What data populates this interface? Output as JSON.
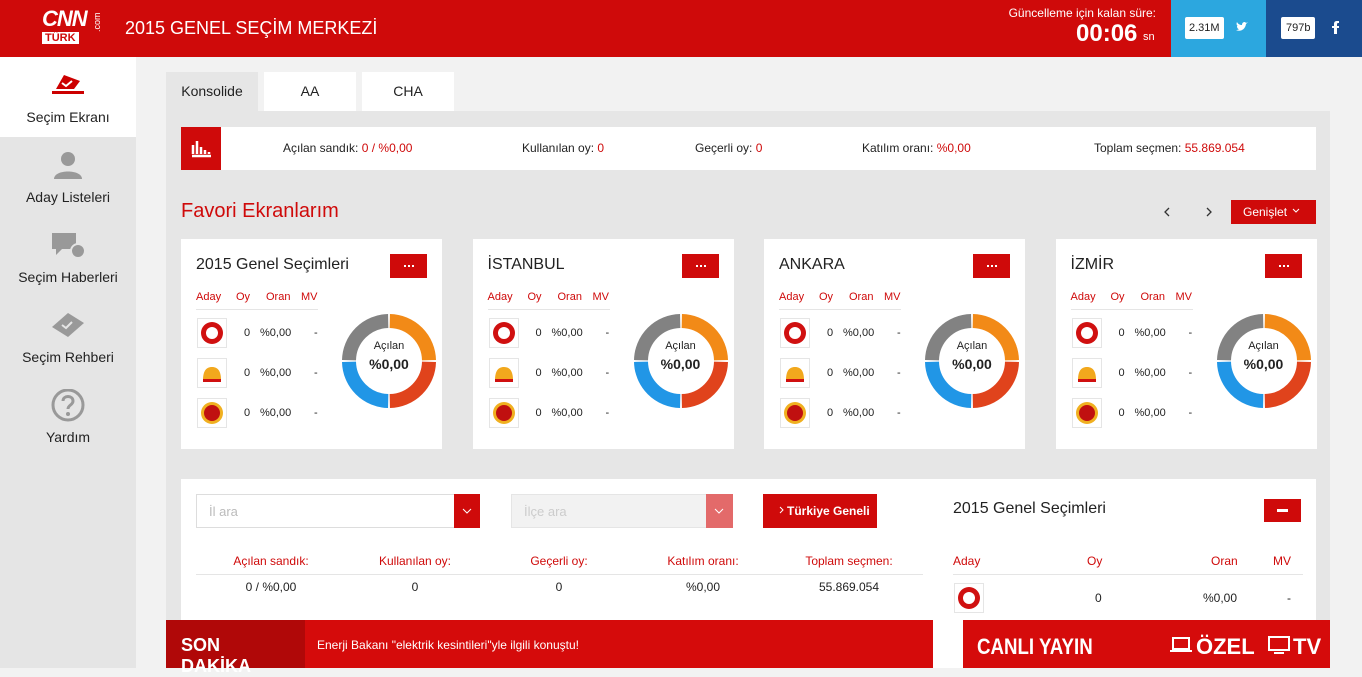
{
  "header": {
    "logo": {
      "cnn": "CNN",
      "turk": "TÜRK",
      "com": ".com"
    },
    "title": "2015 GENEL SEÇİM MERKEZİ",
    "countdown_label": "Güncelleme için kalan süre:",
    "countdown": "00:06",
    "countdown_unit": "sn",
    "twitter_count": "2.31M",
    "facebook_count": "797b"
  },
  "sidebar": [
    "Seçim Ekranı",
    "Aday Listeleri",
    "Seçim Haberleri",
    "Seçim Rehberi",
    "Yardım"
  ],
  "tabs": [
    "Konsolide",
    "AA",
    "CHA"
  ],
  "summary": [
    {
      "label": "Açılan sandık:",
      "value": "0 / %0,00"
    },
    {
      "label": "Kullanılan oy:",
      "value": "0"
    },
    {
      "label": "Geçerli oy:",
      "value": "0"
    },
    {
      "label": "Katılım oranı:",
      "value": "%0,00"
    },
    {
      "label": "Toplam seçmen:",
      "value": "55.869.054"
    }
  ],
  "favorites": {
    "title": "Favori Ekranlarım",
    "expand": "Genişlet",
    "cards": [
      {
        "title": "2015 Genel Seçimleri",
        "columns": [
          "Aday",
          "Oy",
          "Oran",
          "MV"
        ],
        "rows": [
          [
            "0",
            "%0,00",
            "-"
          ],
          [
            "0",
            "%0,00",
            "-"
          ],
          [
            "0",
            "%0,00",
            "-"
          ]
        ],
        "donut_label": "Açılan",
        "donut_value": "%0,00"
      },
      {
        "title": "İSTANBUL",
        "columns": [
          "Aday",
          "Oy",
          "Oran",
          "MV"
        ],
        "rows": [
          [
            "0",
            "%0,00",
            "-"
          ],
          [
            "0",
            "%0,00",
            "-"
          ],
          [
            "0",
            "%0,00",
            "-"
          ]
        ],
        "donut_label": "Açılan",
        "donut_value": "%0,00"
      },
      {
        "title": "ANKARA",
        "columns": [
          "Aday",
          "Oy",
          "Oran",
          "MV"
        ],
        "rows": [
          [
            "0",
            "%0,00",
            "-"
          ],
          [
            "0",
            "%0,00",
            "-"
          ],
          [
            "0",
            "%0,00",
            "-"
          ]
        ],
        "donut_label": "Açılan",
        "donut_value": "%0,00"
      },
      {
        "title": "İZMİR",
        "columns": [
          "Aday",
          "Oy",
          "Oran",
          "MV"
        ],
        "rows": [
          [
            "0",
            "%0,00",
            "-"
          ],
          [
            "0",
            "%0,00",
            "-"
          ],
          [
            "0",
            "%0,00",
            "-"
          ]
        ],
        "donut_label": "Açılan",
        "donut_value": "%0,00"
      }
    ]
  },
  "detail": {
    "il_placeholder": "İl ara",
    "ilce_placeholder": "İlçe ara",
    "button": "Türkiye Geneli",
    "stats": [
      {
        "label": "Açılan sandık:",
        "value": "0 / %0,00"
      },
      {
        "label": "Kullanılan oy:",
        "value": "0"
      },
      {
        "label": "Geçerli oy:",
        "value": "0"
      },
      {
        "label": "Katılım oranı:",
        "value": "%0,00"
      },
      {
        "label": "Toplam seçmen:",
        "value": "55.869.054"
      }
    ],
    "panel": {
      "title": "2015 Genel Seçimleri",
      "columns": [
        "Aday",
        "Oy",
        "Oran",
        "MV"
      ],
      "rows": [
        [
          "0",
          "%0,00",
          "-"
        ]
      ]
    }
  },
  "footer": {
    "breaking_label": "SON DAKİKA",
    "breaking_text": "Enerji Bakanı \"elektrik kesintileri\"yle ilgili konuştu!",
    "live": "CANLI YAYIN",
    "special": "ÖZEL",
    "tv": "TV"
  }
}
